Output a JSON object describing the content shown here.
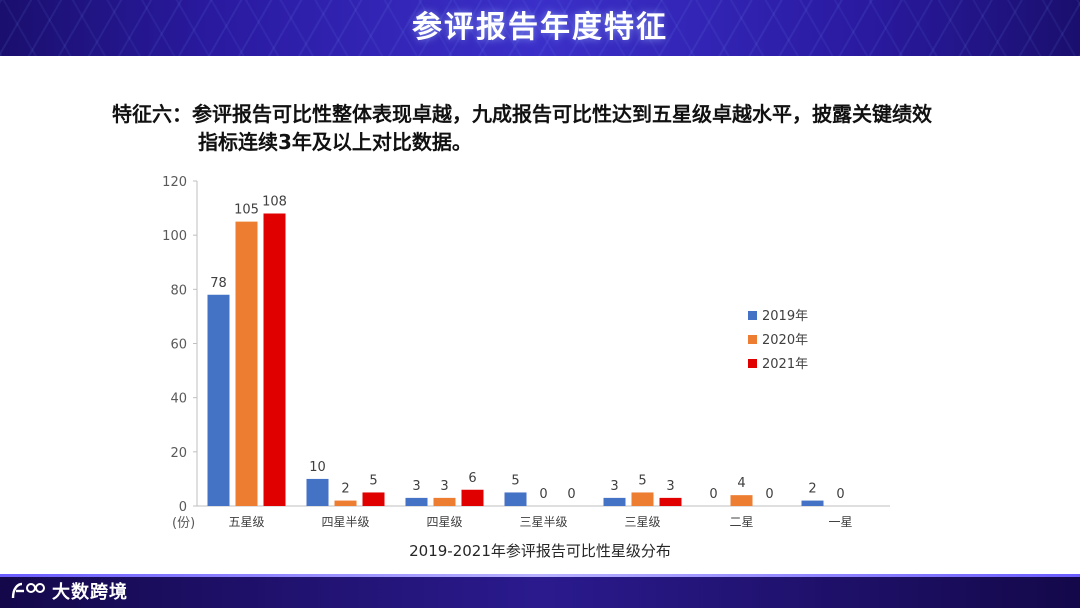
{
  "header": {
    "title": "参评报告年度特征"
  },
  "subtitle": {
    "label": "特征六：",
    "line1": "参评报告可比性整体表现卓越，九成报告可比性达到五星级卓越水平，披露关键绩效",
    "line2": "指标连续3年及以上对比数据。"
  },
  "chart_data": {
    "type": "bar",
    "title": "2019-2021年参评报告可比性星级分布",
    "ylabel": "(份)",
    "ylim": [
      0,
      120
    ],
    "yticks": [
      0,
      20,
      40,
      60,
      80,
      100,
      120
    ],
    "categories": [
      "五星级",
      "四星半级",
      "四星级",
      "三星半级",
      "三星级",
      "二星",
      "一星"
    ],
    "series": [
      {
        "name": "2019年",
        "color": "#4472c4",
        "values": [
          78,
          10,
          3,
          5,
          3,
          0,
          2
        ]
      },
      {
        "name": "2020年",
        "color": "#ed7d31",
        "values": [
          105,
          2,
          3,
          0,
          5,
          4,
          0
        ]
      },
      {
        "name": "2021年",
        "color": "#e00000",
        "values": [
          108,
          5,
          6,
          0,
          3,
          0,
          null
        ]
      }
    ],
    "legend_position": "right"
  },
  "footer": {
    "brand": "大数跨境"
  }
}
